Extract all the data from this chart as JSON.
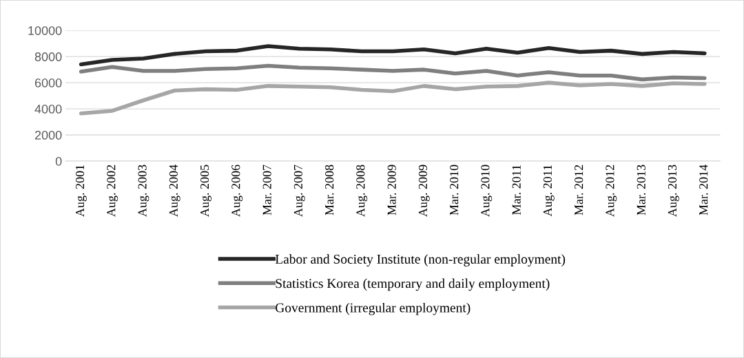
{
  "chart_data": {
    "type": "line",
    "categories": [
      "Aug. 2001",
      "Aug. 2002",
      "Aug. 2003",
      "Aug. 2004",
      "Aug. 2005",
      "Aug. 2006",
      "Mar. 2007",
      "Aug. 2007",
      "Mar. 2008",
      "Aug. 2008",
      "Mar. 2009",
      "Aug. 2009",
      "Mar. 2010",
      "Aug. 2010",
      "Mar. 2011",
      "Aug. 2011",
      "Mar. 2012",
      "Aug. 2012",
      "Mar. 2013",
      "Aug. 2013",
      "Mar. 2014"
    ],
    "series": [
      {
        "name": "Labor and Society Institute (non-regular employment)",
        "color": "#262626",
        "values": [
          7400,
          7750,
          7850,
          8200,
          8400,
          8450,
          8800,
          8600,
          8550,
          8400,
          8400,
          8550,
          8250,
          8600,
          8300,
          8650,
          8350,
          8450,
          8200,
          8350,
          8250
        ]
      },
      {
        "name": "Statistics Korea (temporary and daily employment)",
        "color": "#7f7f7f",
        "values": [
          6850,
          7200,
          6900,
          6900,
          7050,
          7100,
          7300,
          7150,
          7100,
          7000,
          6900,
          7000,
          6700,
          6900,
          6550,
          6800,
          6550,
          6550,
          6250,
          6400,
          6350
        ]
      },
      {
        "name": "Government (irregular employment)",
        "color": "#a6a6a6",
        "values": [
          3650,
          3850,
          4650,
          5400,
          5500,
          5450,
          5750,
          5700,
          5650,
          5450,
          5350,
          5750,
          5500,
          5700,
          5750,
          6000,
          5800,
          5900,
          5750,
          5950,
          5900
        ]
      }
    ],
    "ylim": [
      0,
      10000
    ],
    "yticks": [
      0,
      2000,
      4000,
      6000,
      8000,
      10000
    ],
    "grid": "y",
    "legend": "bottom",
    "marker": "none",
    "line_style": "solid"
  }
}
